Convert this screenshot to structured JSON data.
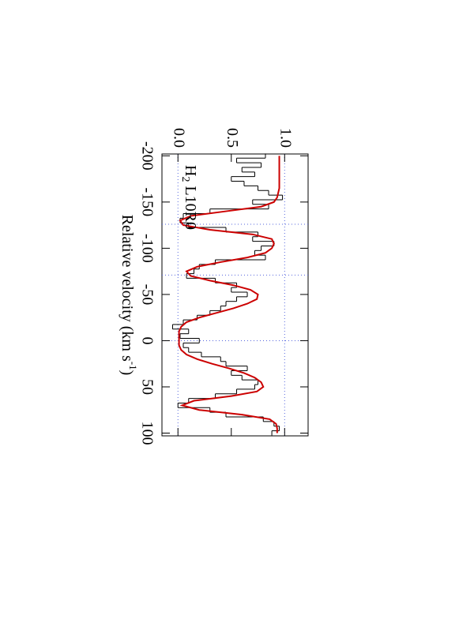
{
  "chart_data": {
    "type": "line",
    "label": {
      "main": "H",
      "subscript": "2",
      "rest": " L10R0"
    },
    "x_label": {
      "main": "Relative velocity (km s",
      "superscript": "-1",
      "rest": ")"
    },
    "x": [
      -200,
      -195,
      -190,
      -185,
      -180,
      -175,
      -170,
      -165,
      -160,
      -155,
      -150,
      -145,
      -140,
      -135,
      -130,
      -125,
      -120,
      -115,
      -110,
      -105,
      -100,
      -95,
      -90,
      -85,
      -80,
      -75,
      -70,
      -65,
      -60,
      -55,
      -50,
      -45,
      -40,
      -35,
      -30,
      -25,
      -20,
      -15,
      -10,
      -5,
      0,
      5,
      10,
      15,
      20,
      25,
      30,
      35,
      40,
      45,
      50,
      55,
      60,
      65,
      70,
      75,
      80,
      85,
      90,
      95,
      100
    ],
    "series": [
      {
        "style": "step",
        "color": "#000000",
        "values": [
          0.82,
          0.55,
          0.78,
          0.6,
          0.72,
          0.5,
          0.62,
          0.75,
          0.85,
          0.98,
          0.7,
          0.85,
          0.3,
          0.05,
          0.02,
          0.1,
          0.45,
          0.75,
          0.7,
          0.9,
          0.78,
          0.72,
          0.82,
          0.35,
          0.2,
          0.15,
          0.08,
          0.35,
          0.55,
          0.5,
          0.65,
          0.55,
          0.45,
          0.4,
          0.3,
          0.18,
          0.05,
          -0.05,
          0.1,
          0.02,
          0.2,
          0.05,
          0.1,
          0.22,
          0.4,
          0.45,
          0.65,
          0.5,
          0.6,
          0.75,
          0.72,
          0.55,
          0.35,
          0.1,
          0.0,
          0.3,
          0.45,
          0.8,
          0.9,
          0.95,
          0.88
        ]
      },
      {
        "style": "line",
        "color": "#cc0000",
        "values": [
          0.95,
          0.95,
          0.95,
          0.95,
          0.95,
          0.95,
          0.95,
          0.95,
          0.94,
          0.93,
          0.9,
          0.78,
          0.45,
          0.12,
          0.02,
          0.05,
          0.3,
          0.7,
          0.88,
          0.9,
          0.88,
          0.82,
          0.65,
          0.4,
          0.18,
          0.08,
          0.12,
          0.3,
          0.52,
          0.68,
          0.75,
          0.74,
          0.65,
          0.52,
          0.36,
          0.2,
          0.08,
          0.03,
          0.01,
          0.01,
          0.01,
          0.01,
          0.03,
          0.08,
          0.18,
          0.32,
          0.48,
          0.62,
          0.72,
          0.78,
          0.8,
          0.74,
          0.5,
          0.15,
          0.04,
          0.2,
          0.6,
          0.86,
          0.92,
          0.93,
          0.93
        ]
      }
    ],
    "xlim": [
      -202,
      103
    ],
    "xticks": [
      -200,
      -150,
      -100,
      -50,
      0,
      50,
      100
    ],
    "ylim": [
      -0.15,
      1.22
    ],
    "yticks": [
      {
        "value": 0,
        "label": "0.0"
      },
      {
        "value": 0.5,
        "label": "0.5"
      },
      {
        "value": 1,
        "label": "1.0"
      }
    ],
    "reference_y": [
      0,
      1
    ],
    "reference_x": [
      -126,
      -71,
      0
    ],
    "reference_color": "#5566dd"
  }
}
